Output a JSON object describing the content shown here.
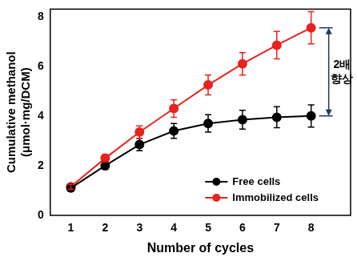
{
  "chart_data": {
    "type": "line",
    "x_label": "Number of cycles",
    "y_label": [
      "Cumulative methanol",
      "(μmol·mg/DCM)"
    ],
    "x": [
      1,
      2,
      3,
      4,
      5,
      6,
      7,
      8
    ],
    "xlim": [
      0.4,
      9.15
    ],
    "xticks": [
      1,
      2,
      3,
      4,
      5,
      6,
      7,
      8
    ],
    "ylim": [
      0,
      8.3
    ],
    "yticks": [
      0,
      2,
      4,
      6,
      8
    ],
    "grid": false,
    "legend": "lower right",
    "series": [
      {
        "name": "Free cells",
        "color": "#000000",
        "marker": "circle",
        "line_style": "solid",
        "values": [
          1.1,
          2.0,
          2.85,
          3.4,
          3.7,
          3.85,
          3.95,
          4.0
        ],
        "errors": [
          0.12,
          0.15,
          0.25,
          0.3,
          0.35,
          0.38,
          0.42,
          0.45
        ]
      },
      {
        "name": "Immobilized cells",
        "color": "#e8221e",
        "marker": "circle",
        "line_style": "solid",
        "values": [
          1.15,
          2.3,
          3.35,
          4.3,
          5.25,
          6.1,
          6.85,
          7.55
        ],
        "errors": [
          0.1,
          0.15,
          0.25,
          0.35,
          0.4,
          0.45,
          0.55,
          0.65
        ]
      }
    ],
    "annotation": {
      "text": [
        "2배",
        "향상"
      ]
    }
  }
}
